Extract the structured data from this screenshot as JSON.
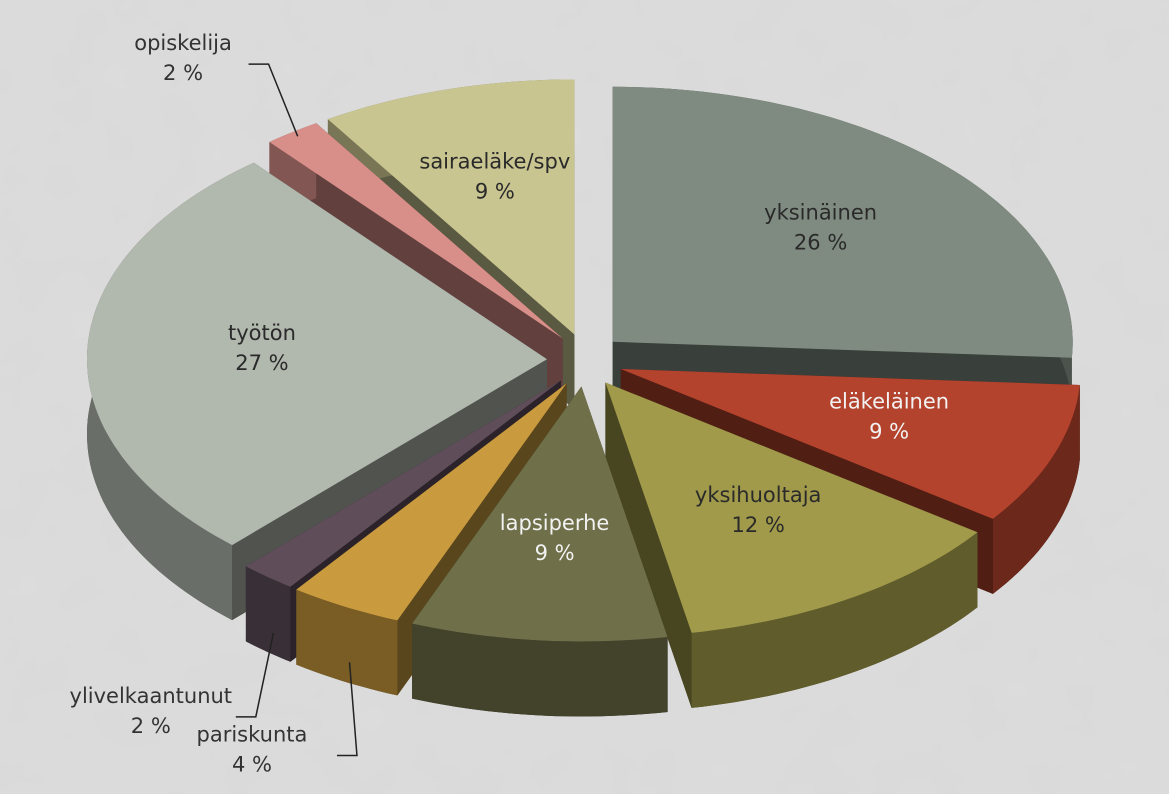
{
  "chart_data": {
    "type": "pie3d",
    "categories": [
      "yksinäinen",
      "eläkeläinen",
      "yksihuoltaja",
      "lapsiperhe",
      "pariskunta",
      "ylivelkaantunut",
      "työtön",
      "opiskelija",
      "sairaeläke/spv"
    ],
    "values": [
      26,
      9,
      12,
      9,
      4,
      2,
      27,
      2,
      9
    ],
    "value_labels": [
      "26 %",
      "9 %",
      "12 %",
      "9 %",
      "4 %",
      "2 %",
      "27 %",
      "2 %",
      "9 %"
    ],
    "colors": [
      "#7f8b80",
      "#b4432d",
      "#a09a4a",
      "#6f6f4a",
      "#c99b3e",
      "#5f4e5a",
      "#b1b8ae",
      "#d98f89",
      "#c9c590"
    ]
  }
}
